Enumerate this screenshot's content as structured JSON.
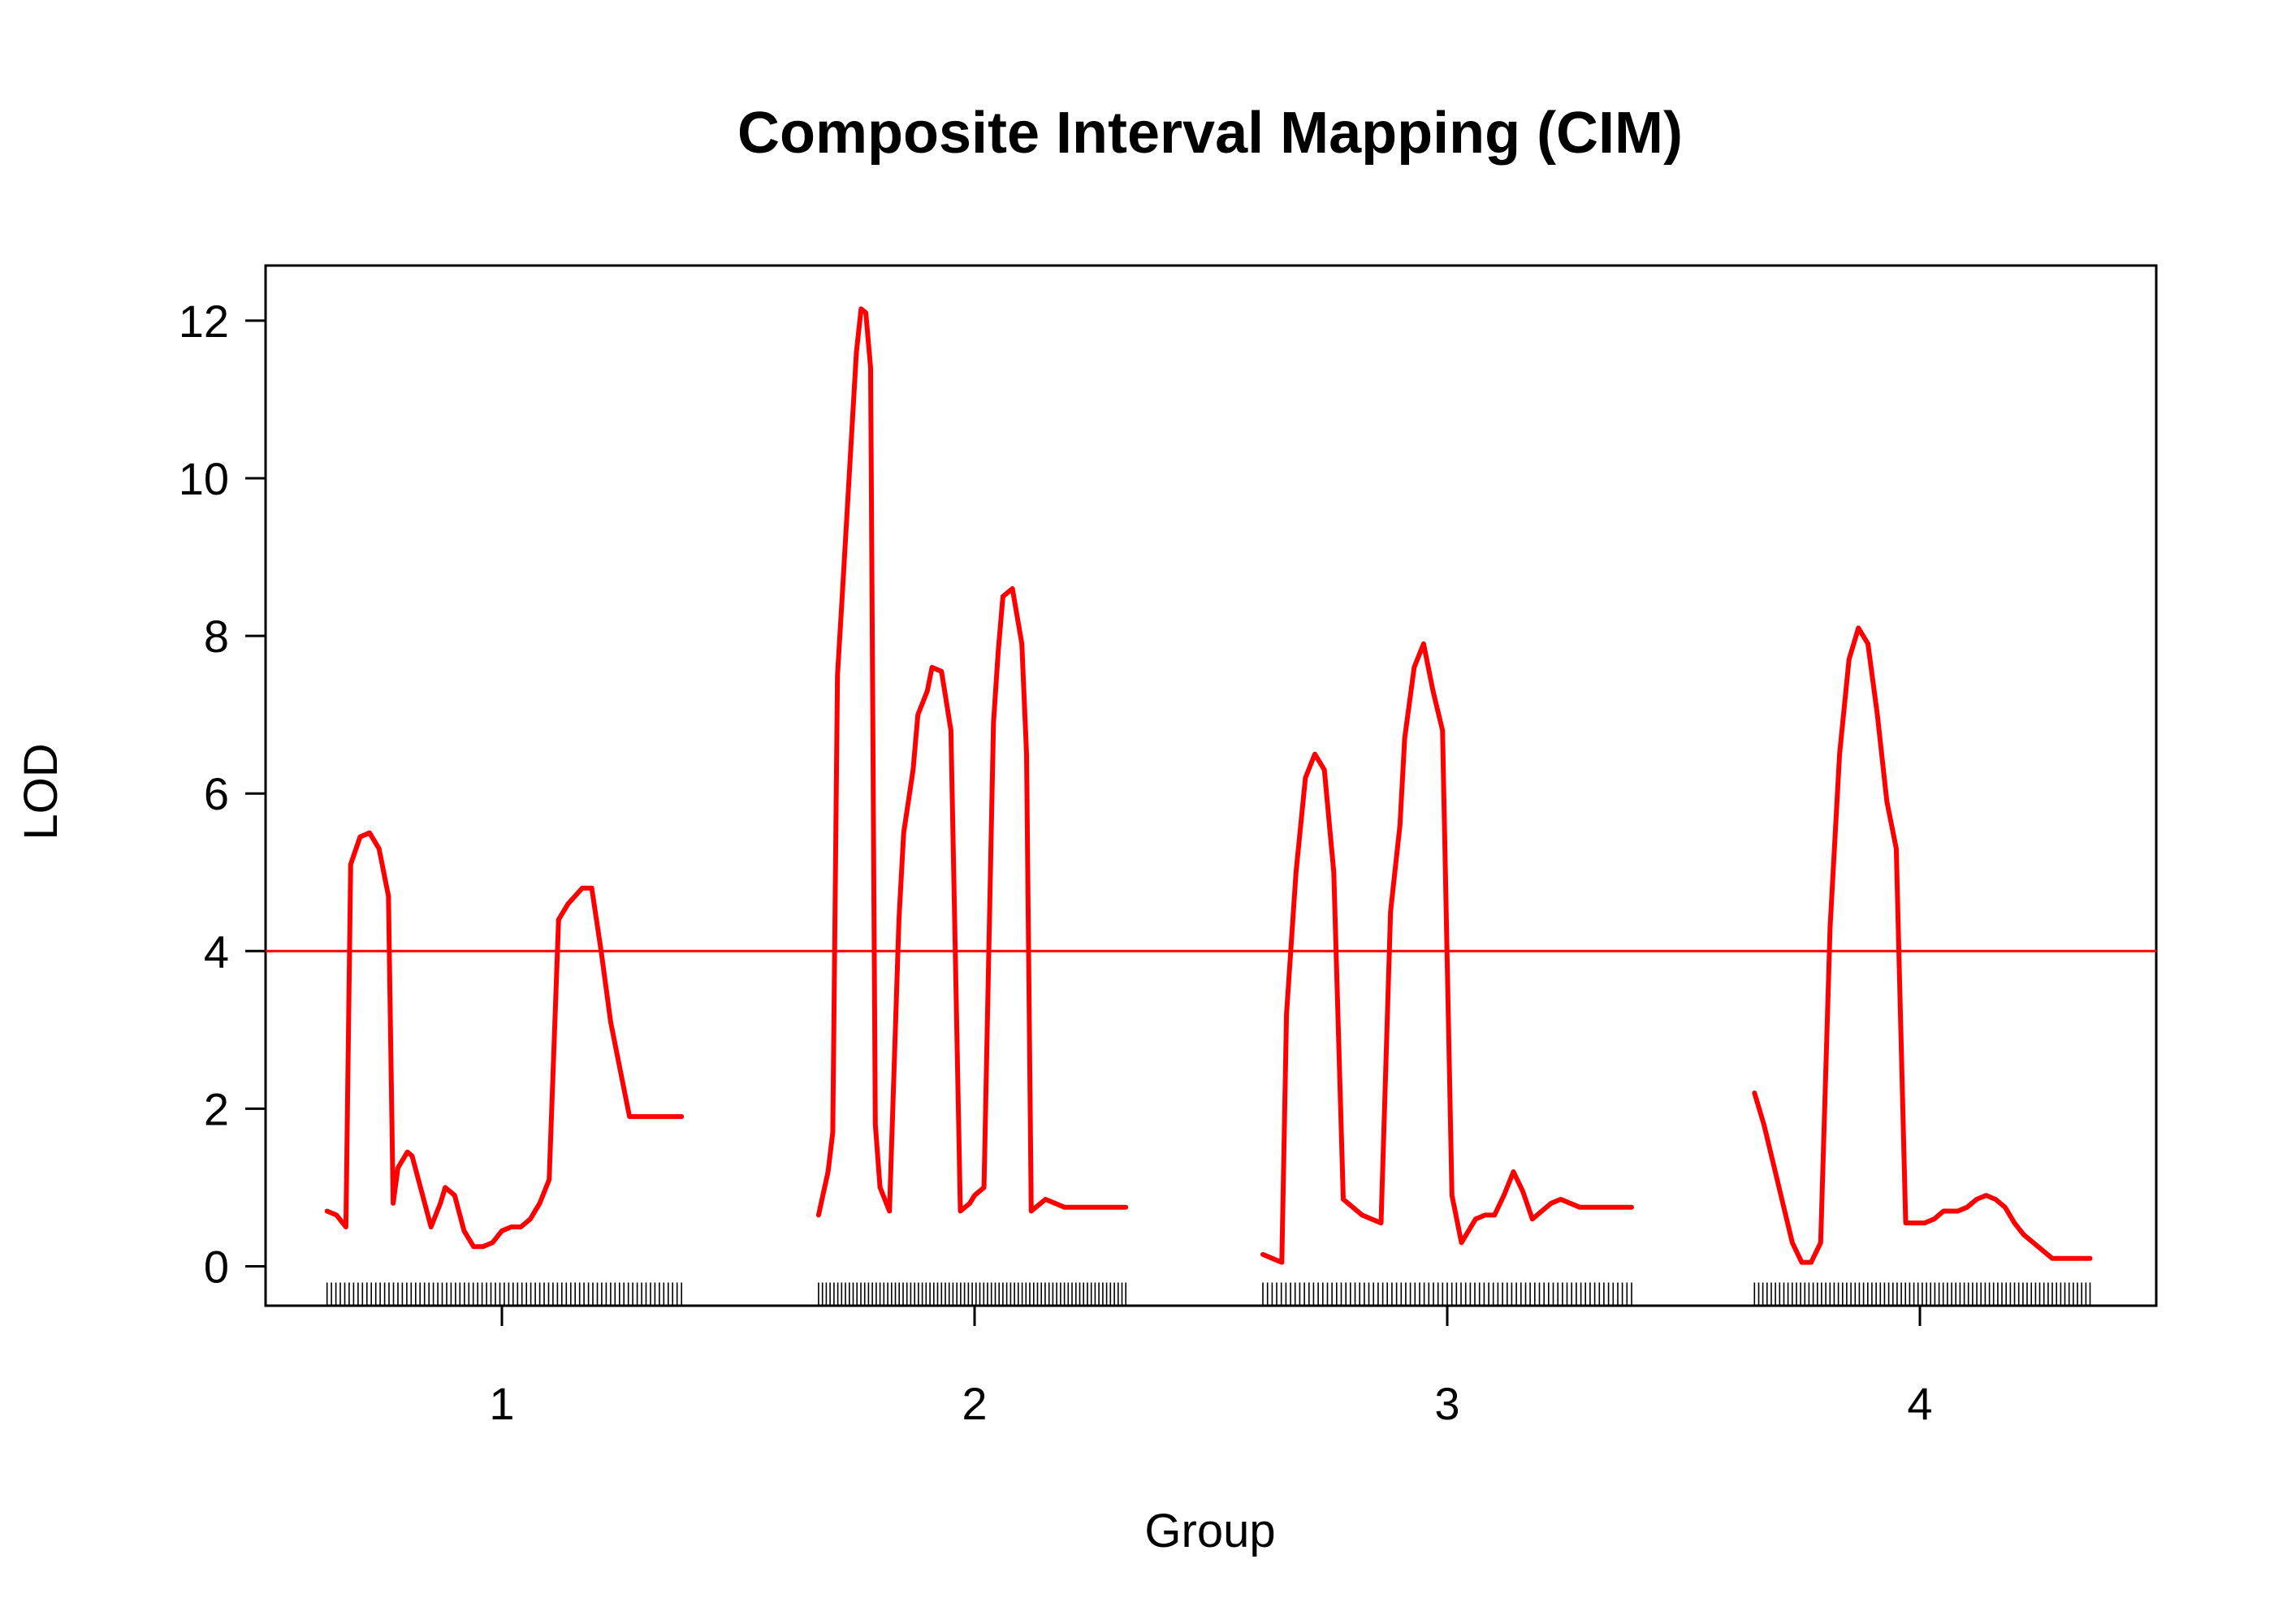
{
  "chart_data": {
    "type": "line",
    "title": "Composite Interval Mapping (CIM)",
    "xlabel": "Group",
    "ylabel": "LOD",
    "ylim": [
      -0.5,
      12.7
    ],
    "xlim": [
      0.5,
      4.5
    ],
    "yticks": [
      0,
      2,
      4,
      6,
      8,
      10,
      12
    ],
    "xticks": [
      1,
      2,
      3,
      4
    ],
    "threshold": 4.0,
    "grid": false,
    "legend": "none",
    "colors": {
      "line": "#ff0000",
      "threshold": "#ff0000",
      "axis": "#000000"
    },
    "series": [
      {
        "group": "1",
        "x": [
          0.63,
          0.65,
          0.67,
          0.68,
          0.7,
          0.72,
          0.74,
          0.76,
          0.77,
          0.78,
          0.8,
          0.81,
          0.83,
          0.85,
          0.87,
          0.88,
          0.9,
          0.92,
          0.94,
          0.96,
          0.98,
          1.0,
          1.02,
          1.04,
          1.06,
          1.08,
          1.1,
          1.12,
          1.14,
          1.17,
          1.19,
          1.21,
          1.23,
          1.25,
          1.27,
          1.29,
          1.32,
          1.35,
          1.38
        ],
        "y": [
          0.7,
          0.65,
          0.5,
          5.1,
          5.45,
          5.5,
          5.3,
          4.7,
          0.8,
          1.25,
          1.45,
          1.4,
          0.95,
          0.5,
          0.8,
          1.0,
          0.9,
          0.45,
          0.25,
          0.25,
          0.3,
          0.45,
          0.5,
          0.5,
          0.6,
          0.8,
          1.1,
          4.4,
          4.6,
          4.8,
          4.8,
          4.0,
          3.1,
          2.5,
          1.9,
          1.9,
          1.9,
          1.9,
          1.9
        ]
      },
      {
        "group": "2",
        "x": [
          1.67,
          1.69,
          1.7,
          1.71,
          1.72,
          1.75,
          1.76,
          1.77,
          1.78,
          1.79,
          1.8,
          1.82,
          1.84,
          1.85,
          1.87,
          1.88,
          1.9,
          1.91,
          1.93,
          1.95,
          1.97,
          1.99,
          2.0,
          2.02,
          2.04,
          2.05,
          2.06,
          2.08,
          2.1,
          2.11,
          2.12,
          2.14,
          2.15,
          2.17,
          2.19,
          2.2,
          2.21,
          2.23,
          2.25,
          2.27,
          2.29,
          2.31,
          2.32
        ],
        "y": [
          0.65,
          1.2,
          1.7,
          7.5,
          8.5,
          11.6,
          12.15,
          12.1,
          11.4,
          1.8,
          1.0,
          0.7,
          4.4,
          5.5,
          6.3,
          7.0,
          7.3,
          7.6,
          7.55,
          6.8,
          0.7,
          0.8,
          0.9,
          1.0,
          6.9,
          7.8,
          8.5,
          8.6,
          7.9,
          6.5,
          0.7,
          0.8,
          0.85,
          0.8,
          0.75,
          0.75,
          0.75,
          0.75,
          0.75,
          0.75,
          0.75,
          0.75,
          0.75
        ]
      },
      {
        "group": "3",
        "x": [
          2.61,
          2.63,
          2.65,
          2.66,
          2.68,
          2.7,
          2.72,
          2.74,
          2.76,
          2.78,
          2.79,
          2.8,
          2.82,
          2.84,
          2.86,
          2.88,
          2.9,
          2.91,
          2.93,
          2.95,
          2.97,
          2.99,
          3.01,
          3.03,
          3.05,
          3.06,
          3.08,
          3.1,
          3.12,
          3.14,
          3.16,
          3.18,
          3.2,
          3.22,
          3.24,
          3.26,
          3.28,
          3.3,
          3.32,
          3.34,
          3.37,
          3.39
        ],
        "y": [
          0.15,
          0.1,
          0.05,
          3.2,
          5.0,
          6.2,
          6.5,
          6.3,
          5.0,
          0.85,
          0.8,
          0.75,
          0.65,
          0.6,
          0.55,
          4.5,
          5.6,
          6.7,
          7.6,
          7.9,
          7.3,
          6.8,
          0.9,
          0.3,
          0.5,
          0.6,
          0.65,
          0.65,
          0.9,
          1.2,
          0.95,
          0.6,
          0.7,
          0.8,
          0.85,
          0.8,
          0.75,
          0.75,
          0.75,
          0.75,
          0.75,
          0.75
        ]
      },
      {
        "group": "4",
        "x": [
          3.65,
          3.67,
          3.69,
          3.71,
          3.73,
          3.75,
          3.77,
          3.79,
          3.81,
          3.83,
          3.85,
          3.87,
          3.89,
          3.91,
          3.93,
          3.95,
          3.97,
          3.99,
          4.01,
          4.03,
          4.05,
          4.08,
          4.1,
          4.12,
          4.14,
          4.16,
          4.18,
          4.2,
          4.22,
          4.24,
          4.26,
          4.28,
          4.3,
          4.32,
          4.34,
          4.36
        ],
        "y": [
          2.2,
          1.8,
          1.3,
          0.8,
          0.3,
          0.05,
          0.05,
          0.3,
          4.3,
          6.5,
          7.7,
          8.1,
          7.9,
          7.0,
          5.9,
          5.3,
          0.55,
          0.55,
          0.55,
          0.6,
          0.7,
          0.7,
          0.75,
          0.85,
          0.9,
          0.85,
          0.75,
          0.55,
          0.4,
          0.3,
          0.2,
          0.1,
          0.1,
          0.1,
          0.1,
          0.1
        ]
      }
    ]
  }
}
